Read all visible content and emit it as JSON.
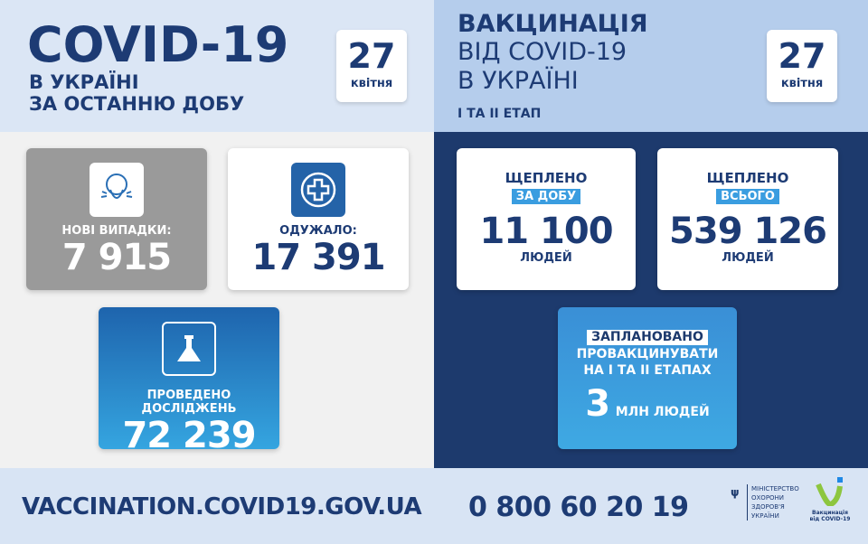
{
  "left_header": {
    "title": "COVID-19",
    "line1": "В УКРАЇНІ",
    "line2": "ЗА ОСТАННЮ ДОБУ",
    "date_day": "27",
    "date_month": "квітня"
  },
  "right_header": {
    "line1": "ВАКЦИНАЦІЯ",
    "line2": "ВІД COVID-19",
    "line3": "В УКРАЇНІ",
    "stage": "І ТА ІІ ЕТАП",
    "date_day": "27",
    "date_month": "квітня"
  },
  "stats": {
    "new_cases": {
      "label": "НОВІ ВИПАДКИ:",
      "value": "7 915",
      "icon": "sneezing-person-icon"
    },
    "recovered": {
      "label": "ОДУЖАЛО:",
      "value": "17 391",
      "icon": "medical-cross-icon"
    },
    "tests": {
      "label": "ПРОВЕДЕНО ДОСЛІДЖЕНЬ",
      "value": "72 239",
      "icon": "flask-icon"
    }
  },
  "vaccination": {
    "daily": {
      "label": "ЩЕПЛЕНО",
      "pill": "ЗА ДОБУ",
      "value": "11 100",
      "unit": "ЛЮДЕЙ"
    },
    "total": {
      "label": "ЩЕПЛЕНО",
      "pill": "ВСЬОГО",
      "value": "539 126",
      "unit": "ЛЮДЕЙ"
    },
    "planned": {
      "pill": "ЗАПЛАНОВАНО",
      "line1": "ПРОВАКЦИНУВАТИ",
      "line2": "НА І ТА ІІ ЕТАПАХ",
      "value": "3",
      "unit": "МЛН ЛЮДЕЙ"
    }
  },
  "footer": {
    "url": "VACCINATION.COVID19.GOV.UA",
    "phone": "0 800 60 20 19",
    "ministry": [
      "МІНІСТЕРСТВО",
      "ОХОРОНИ",
      "ЗДОРОВ'Я",
      "УКРАЇНИ"
    ],
    "vacc_logo": [
      "Вакцинація",
      "від COVID-19"
    ]
  },
  "colors": {
    "navy": "#1d3a6d",
    "blue": "#2a7fc8",
    "grey": "#9a9a9a",
    "green": "#8dc63f"
  }
}
